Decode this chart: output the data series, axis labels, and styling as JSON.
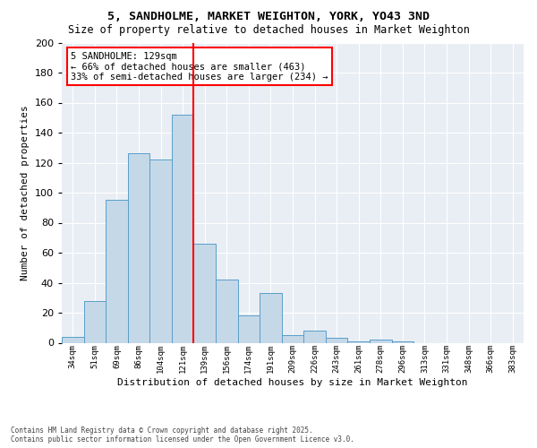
{
  "title_line1": "5, SANDHOLME, MARKET WEIGHTON, YORK, YO43 3ND",
  "title_line2": "Size of property relative to detached houses in Market Weighton",
  "xlabel": "Distribution of detached houses by size in Market Weighton",
  "ylabel": "Number of detached properties",
  "categories": [
    "34sqm",
    "51sqm",
    "69sqm",
    "86sqm",
    "104sqm",
    "121sqm",
    "139sqm",
    "156sqm",
    "174sqm",
    "191sqm",
    "209sqm",
    "226sqm",
    "243sqm",
    "261sqm",
    "278sqm",
    "296sqm",
    "313sqm",
    "331sqm",
    "348sqm",
    "366sqm",
    "383sqm"
  ],
  "bar_heights": [
    4,
    28,
    95,
    126,
    122,
    152,
    66,
    42,
    18,
    33,
    5,
    8,
    3,
    1,
    2,
    1,
    0,
    0,
    0,
    0,
    0
  ],
  "bar_color": "#c5d8e8",
  "bar_edge_color": "#5a9ec9",
  "vline_index": 5.5,
  "vline_color": "red",
  "annotation_text": "5 SANDHOLME: 129sqm\n← 66% of detached houses are smaller (463)\n33% of semi-detached houses are larger (234) →",
  "ylim": [
    0,
    200
  ],
  "yticks": [
    0,
    20,
    40,
    60,
    80,
    100,
    120,
    140,
    160,
    180,
    200
  ],
  "background_color": "#e8eef4",
  "footer_line1": "Contains HM Land Registry data © Crown copyright and database right 2025.",
  "footer_line2": "Contains public sector information licensed under the Open Government Licence v3.0."
}
